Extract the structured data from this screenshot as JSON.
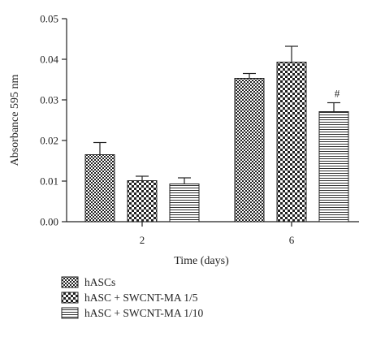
{
  "chart_data": {
    "type": "bar",
    "categories": [
      "2",
      "6"
    ],
    "xlabel": "Time (days)",
    "ylabel": "Absorbance 595 nm",
    "ylim": [
      0,
      0.05
    ],
    "yticks": [
      "0.00",
      "0.01",
      "0.02",
      "0.03",
      "0.04",
      "0.05"
    ],
    "grid": false,
    "legend_position": "bottom-left",
    "series": [
      {
        "name": "hASCs",
        "values": [
          0.0165,
          0.0353
        ],
        "errors": [
          0.003,
          0.0012
        ],
        "pattern": "checker-small"
      },
      {
        "name": "hASC + SWCNT-MA 1/5",
        "values": [
          0.0101,
          0.0393
        ],
        "errors": [
          0.0011,
          0.0039
        ],
        "pattern": "checker-large"
      },
      {
        "name": "hASC + SWCNT-MA 1/10",
        "values": [
          0.0093,
          0.0271
        ],
        "errors": [
          0.0015,
          0.0022
        ],
        "pattern": "horizontal-lines"
      }
    ],
    "annotations": [
      {
        "text": "#",
        "category": "6",
        "series": "hASC + SWCNT-MA 1/10"
      }
    ],
    "colors": {
      "ink": "#222222",
      "background": "#ffffff"
    }
  }
}
